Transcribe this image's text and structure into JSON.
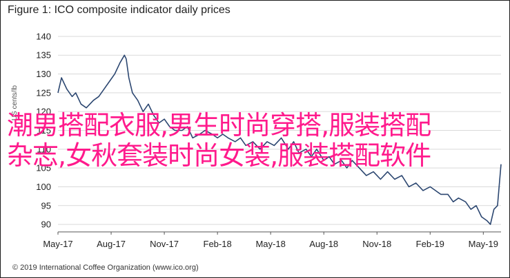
{
  "title": "Figure 1: ICO composite indicator daily prices",
  "footer": "© 2019 International Coffee Organization (www.ico.org)",
  "overlay": {
    "line1": "潮男搭配衣服,男生时尚穿搭,服装搭配",
    "line2": "杂志,女秋套装时尚女装,服装搭配软件",
    "color": "#ff1a8c"
  },
  "chart_data": {
    "type": "line",
    "title": "Figure 1: ICO composite indicator daily prices",
    "ylabel": "US cents/lb",
    "ylim": [
      88,
      142
    ],
    "yticks": [
      90,
      95,
      100,
      105,
      110,
      115,
      120,
      125,
      130,
      135,
      140
    ],
    "xlim": [
      0,
      25
    ],
    "xticks": [
      {
        "pos": 0,
        "label": "May-17"
      },
      {
        "pos": 3,
        "label": "Aug-17"
      },
      {
        "pos": 6,
        "label": "Nov-17"
      },
      {
        "pos": 9,
        "label": "Feb-18"
      },
      {
        "pos": 12,
        "label": "May-18"
      },
      {
        "pos": 15,
        "label": "Aug-18"
      },
      {
        "pos": 18,
        "label": "Nov-18"
      },
      {
        "pos": 21,
        "label": "Feb-19"
      },
      {
        "pos": 24,
        "label": "May-19"
      }
    ],
    "grid": "horizontal",
    "series": [
      {
        "color": "#2b4670",
        "x": [
          0,
          0.2,
          0.5,
          0.8,
          1.0,
          1.3,
          1.6,
          2.0,
          2.3,
          2.6,
          2.9,
          3.2,
          3.5,
          3.75,
          3.85,
          4.0,
          4.2,
          4.5,
          4.8,
          5.1,
          5.4,
          5.7,
          6.0,
          6.3,
          6.6,
          7.0,
          7.3,
          7.6,
          8.0,
          8.3,
          8.7,
          9.0,
          9.3,
          9.6,
          10.0,
          10.3,
          10.6,
          11.0,
          11.4,
          11.8,
          12.2,
          12.6,
          13.0,
          13.3,
          13.6,
          14.0,
          14.3,
          14.6,
          15.0,
          15.3,
          15.6,
          16.0,
          16.3,
          16.6,
          17.0,
          17.4,
          17.8,
          18.2,
          18.6,
          19.0,
          19.4,
          19.8,
          20.2,
          20.6,
          21.0,
          21.3,
          21.6,
          22.0,
          22.3,
          22.6,
          23.0,
          23.3,
          23.6,
          23.9,
          24.2,
          24.4,
          24.6,
          24.8,
          25.0
        ],
        "values": [
          125,
          129,
          126,
          124,
          125,
          122,
          121,
          123,
          124,
          126,
          128,
          130,
          133,
          135,
          134,
          129,
          125,
          123,
          120,
          122,
          119,
          117,
          118,
          116,
          115,
          115,
          116,
          113,
          114,
          115,
          114,
          113,
          114,
          113,
          112,
          113,
          111,
          112,
          110,
          112,
          111,
          113,
          110,
          112,
          109,
          110,
          108,
          110,
          107,
          108,
          106,
          107,
          105,
          107,
          105,
          103,
          104,
          102,
          104,
          102,
          103,
          100,
          101,
          99,
          100,
          99,
          98,
          98,
          96,
          97,
          96,
          94,
          95,
          92,
          91,
          90,
          94,
          95,
          106
        ]
      }
    ]
  }
}
